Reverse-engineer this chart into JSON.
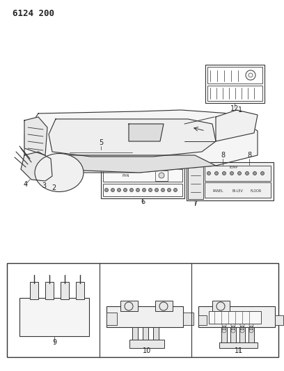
{
  "title": "6124 200",
  "bg_color": "#ffffff",
  "line_color": "#333333",
  "label_color": "#222222",
  "fig_width": 4.08,
  "fig_height": 5.33,
  "dpi": 100,
  "labels": {
    "title": "6124 200",
    "1": "1",
    "2": "2",
    "3": "3",
    "4": "4",
    "5": "5",
    "6": "6",
    "7": "7",
    "8a": "8",
    "8b": "8",
    "9": "9",
    "10": "10",
    "11": "11",
    "12": "12"
  }
}
